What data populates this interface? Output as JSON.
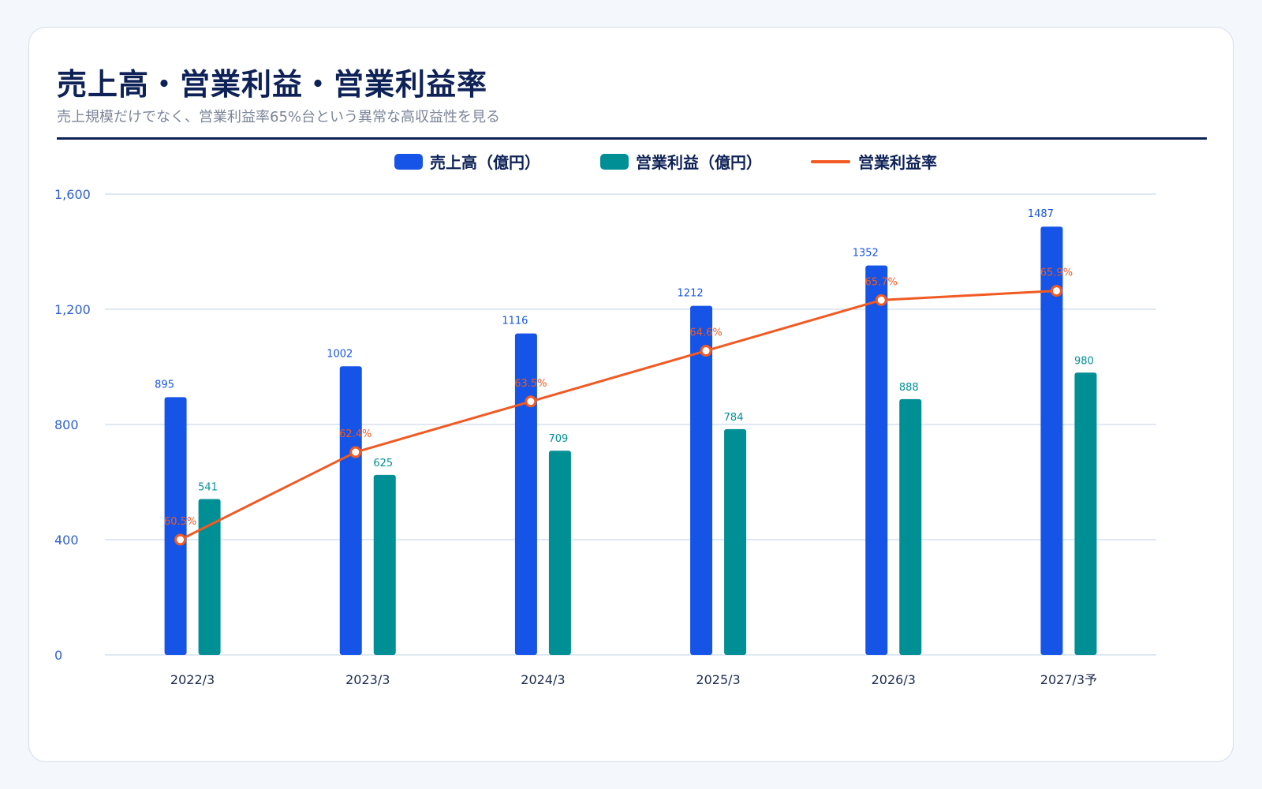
{
  "page": {
    "title": "売上高・営業利益・営業利益率",
    "subtitle": "売上規模だけでなく、営業利益率65%台という異常な高収益性を見る"
  },
  "colors": {
    "sales": "#1554e6",
    "profit": "#008f94",
    "margin": "#f15a22",
    "title": "#0e2257",
    "axis_text": "#2f5fd0",
    "grid": "#d6e0ee"
  },
  "chart_data": {
    "type": "bar",
    "categories": [
      "2022/3",
      "2023/3",
      "2024/3",
      "2025/3",
      "2026/3",
      "2027/3予"
    ],
    "series": [
      {
        "name": "売上高（億円）",
        "type": "bar",
        "values": [
          895,
          1002,
          1116,
          1212,
          1352,
          1487
        ]
      },
      {
        "name": "営業利益（億円）",
        "type": "bar",
        "values": [
          541,
          625,
          709,
          784,
          888,
          980
        ]
      },
      {
        "name": "営業利益率",
        "type": "line",
        "values": [
          60.5,
          62.4,
          63.5,
          64.6,
          65.7,
          65.9
        ],
        "labels": [
          "60.5%",
          "62.4%",
          "63.5%",
          "64.6%",
          "65.7%",
          "65.9%"
        ]
      }
    ],
    "ylim": [
      0,
      1600
    ],
    "yticks": [
      0,
      400,
      800,
      1200,
      1600
    ],
    "ytick_labels": [
      "0",
      "400",
      "800",
      "1,200",
      "1,600"
    ],
    "margin_range": [
      58,
      68
    ],
    "grid": true,
    "legend": "top-center"
  }
}
